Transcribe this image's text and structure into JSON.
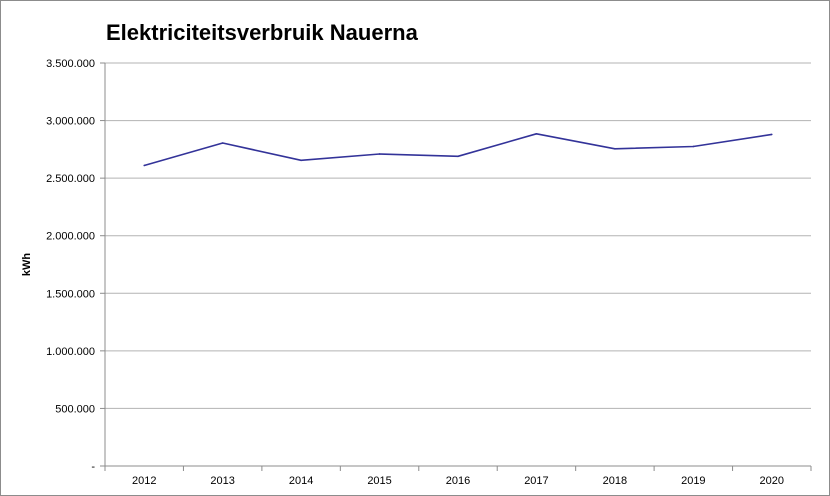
{
  "chart_data": {
    "type": "line",
    "title": "Elektriciteitsverbruik Nauerna",
    "xlabel": "",
    "ylabel": "kWh",
    "x": [
      "2012",
      "2013",
      "2014",
      "2015",
      "2016",
      "2017",
      "2018",
      "2019",
      "2020"
    ],
    "series": [
      {
        "values": [
          2610000,
          2805000,
          2655000,
          2710000,
          2690000,
          2885000,
          2755000,
          2775000,
          2880000
        ],
        "color": "#333399"
      }
    ],
    "ylim": [
      0,
      3500000
    ],
    "ytick_values": [
      0,
      500000,
      1000000,
      1500000,
      2000000,
      2500000,
      3000000,
      3500000
    ],
    "ytick_labels": [
      "-",
      "500.000",
      "1.000.000",
      "1.500.000",
      "2.000.000",
      "2.500.000",
      "3.000.000",
      "3.500.000"
    ],
    "grid": true,
    "legend": "none"
  }
}
